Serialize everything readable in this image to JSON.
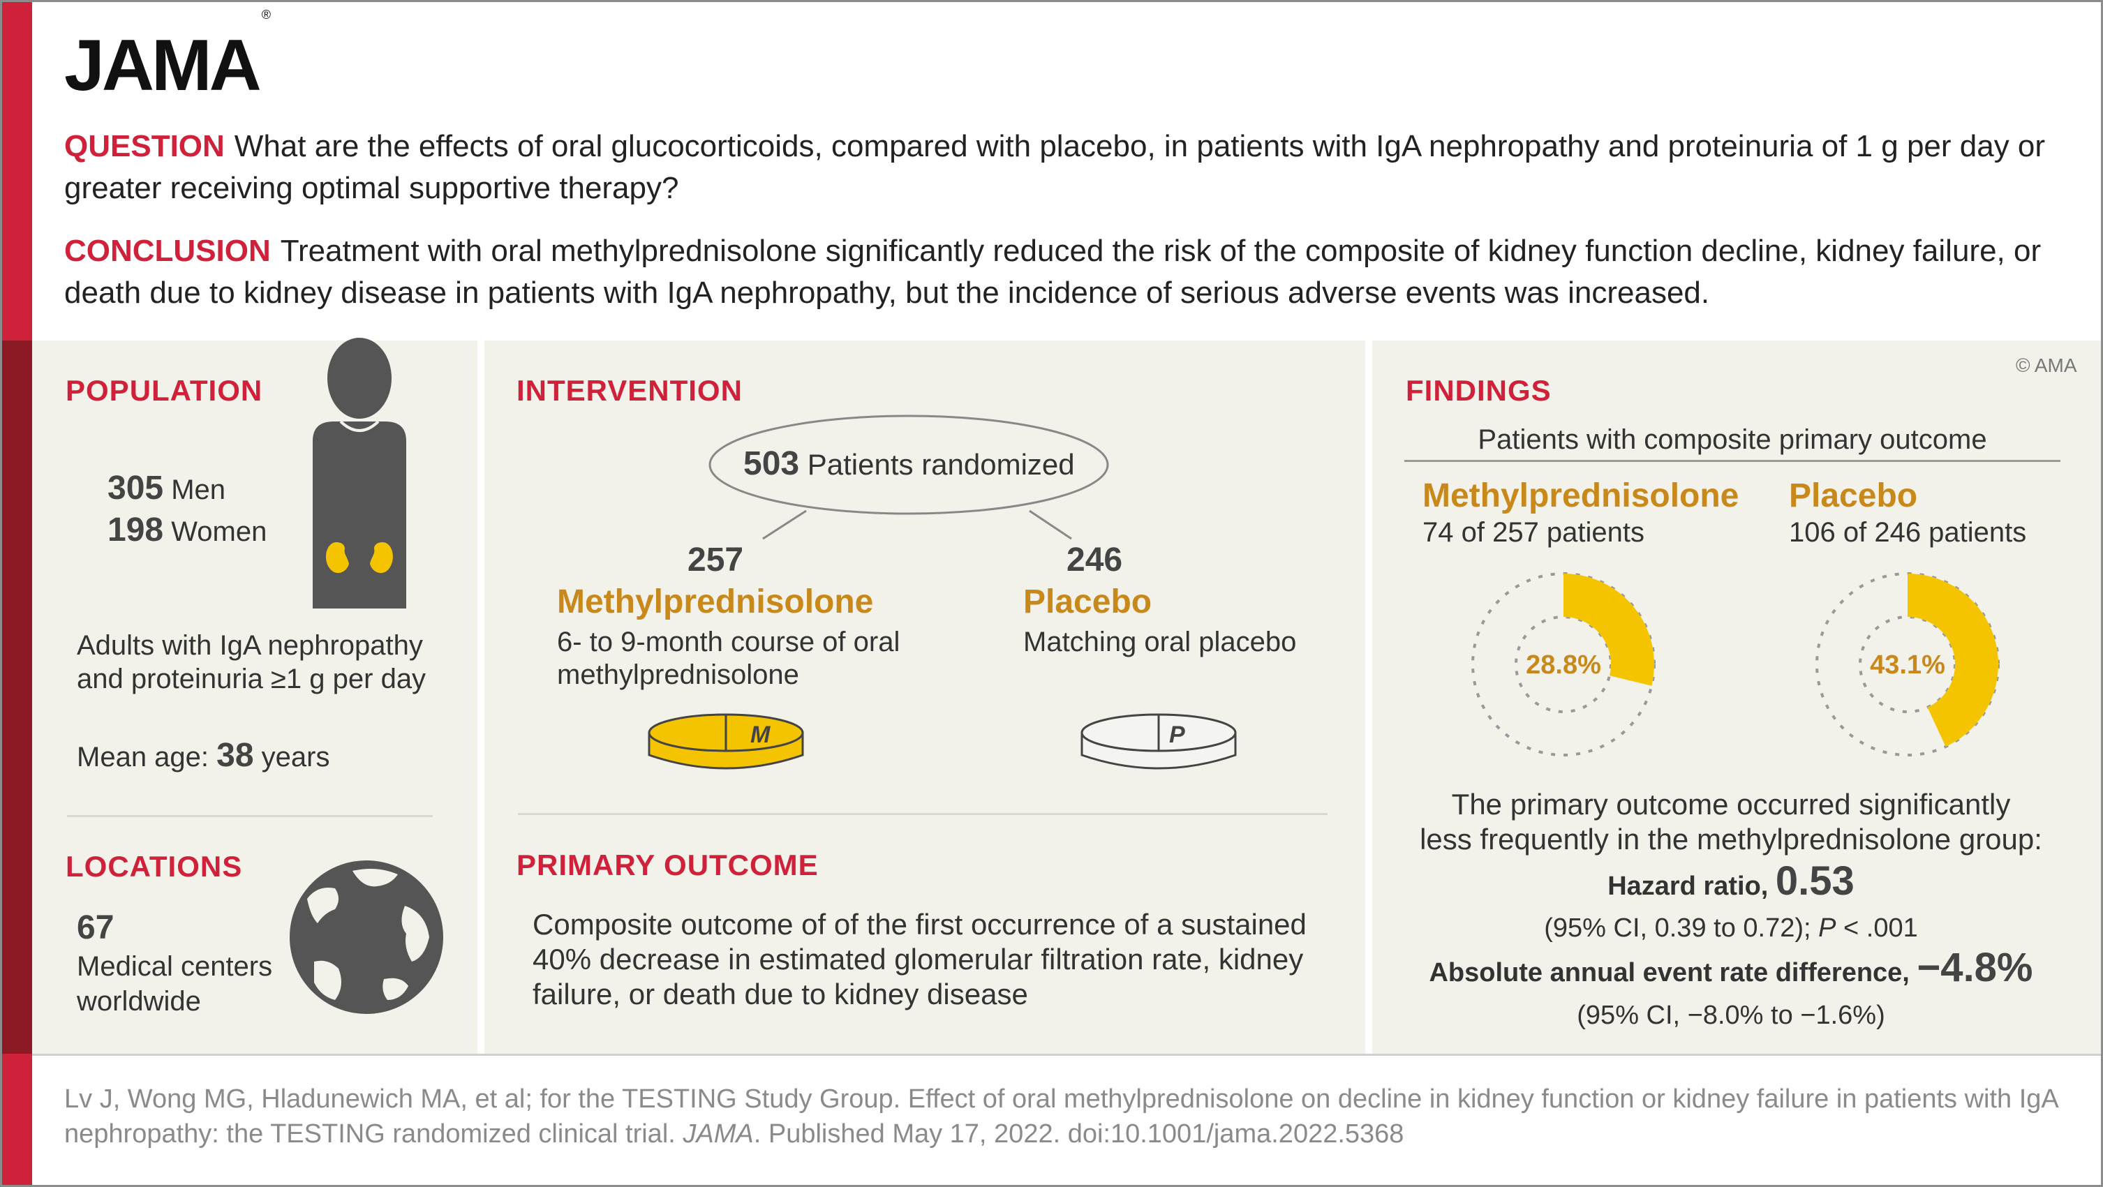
{
  "header": {
    "logo": "JAMA",
    "logo_mark": "®",
    "question_label": "QUESTION",
    "question_text": "What are the effects of oral glucocorticoids, compared with placebo, in patients with IgA nephropathy and proteinuria of 1 g per day or greater receiving optimal supportive therapy?",
    "conclusion_label": "CONCLUSION",
    "conclusion_text": "Treatment with oral methylprednisolone significantly reduced the risk of the composite of kidney function decline, kidney failure, or death due to kidney disease in patients with IgA nephropathy, but the incidence of serious adverse events was increased."
  },
  "population": {
    "title": "POPULATION",
    "men_count": "305",
    "men_label": "Men",
    "women_count": "198",
    "women_label": "Women",
    "desc_line1": "Adults with IgA nephropathy",
    "desc_line2": "and proteinuria ≥1 g per day",
    "age_label": "Mean age:",
    "age_value": "38",
    "age_unit": "years",
    "icon": "person-kidney-icon"
  },
  "locations": {
    "title": "LOCATIONS",
    "count": "67",
    "line1": "Medical centers",
    "line2": "worldwide",
    "icon": "globe-icon"
  },
  "intervention": {
    "title": "INTERVENTION",
    "randomized_count": "503",
    "randomized_label": "Patients randomized",
    "arm1": {
      "count": "257",
      "name": "Methylprednisolone",
      "desc_line1": "6- to 9-month course of oral",
      "desc_line2": "methylprednisolone",
      "pill_letter": "M",
      "pill_color": "#f5c400"
    },
    "arm2": {
      "count": "246",
      "name": "Placebo",
      "desc_line1": "Matching oral placebo",
      "pill_letter": "P",
      "pill_color": "#f4f4f0"
    }
  },
  "primary_outcome": {
    "title": "PRIMARY OUTCOME",
    "line1": "Composite outcome of of the first occurrence of a sustained",
    "line2": "40% decrease in estimated glomerular filtration rate, kidney",
    "line3": "failure, or death due to kidney disease"
  },
  "findings": {
    "title": "FINDINGS",
    "copyright": "© AMA",
    "subtitle": "Patients with composite primary outcome",
    "groups": [
      {
        "name": "Methylprednisolone",
        "detail": "74 of 257 patients",
        "percent_label": "28.8%",
        "fraction": 0.288
      },
      {
        "name": "Placebo",
        "detail": "106 of 246 patients",
        "percent_label": "43.1%",
        "fraction": 0.431
      }
    ],
    "summary_line1": "The primary outcome occurred significantly",
    "summary_line2": "less frequently in the methylprednisolone group:",
    "hr_label": "Hazard ratio,",
    "hr_value": "0.53",
    "hr_ci_text": "(95% CI, 0.39 to 0.72);",
    "hr_p_label": "P",
    "hr_p_text": "< .001",
    "ard_label": "Absolute annual event rate difference,",
    "ard_value": "−4.8%",
    "ard_ci": "(95% CI, −8.0%  to −1.6%)",
    "accent_color": "#f5c400",
    "label_color": "#c8891a"
  },
  "citation": {
    "text1": "Lv J, Wong MG, Hladunewich MA, et al; for the TESTING Study Group. Effect of oral methylprednisolone on decline in kidney function or kidney failure in patients with IgA nephropathy: the TESTING randomized clinical trial.",
    "journal": "JAMA",
    "text2": ". Published May 17, 2022. doi:10.1001/jama.2022.5368"
  }
}
